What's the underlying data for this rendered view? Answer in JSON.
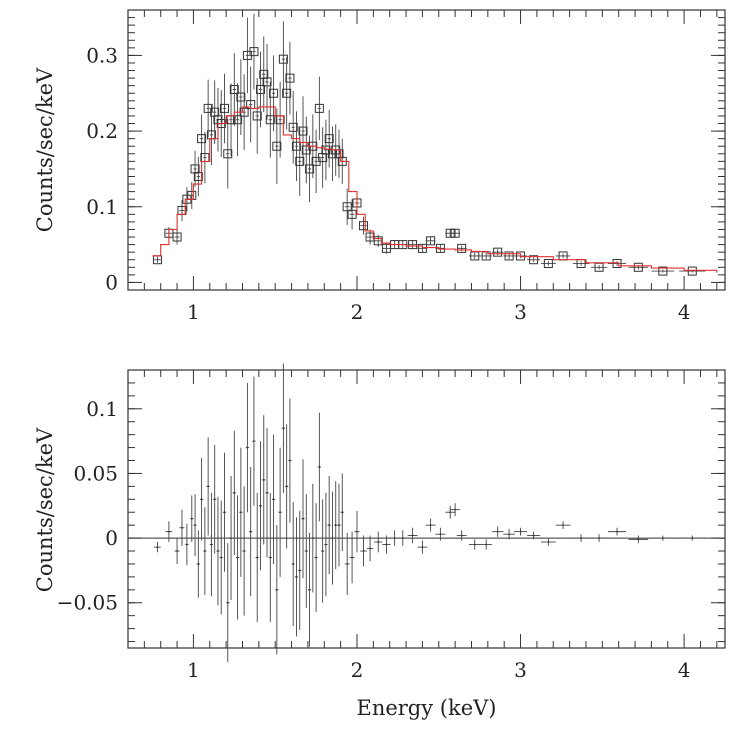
{
  "chart_data": [
    {
      "type": "scatter",
      "title": "",
      "xlabel": "",
      "ylabel": "Counts/sec/keV",
      "xlim": [
        0.6,
        4.25
      ],
      "ylim": [
        -0.01,
        0.36
      ],
      "xticks": [
        1,
        2,
        3,
        4
      ],
      "yticks": [
        0,
        0.1,
        0.2,
        0.3
      ],
      "xtick_labels": [
        "1",
        "2",
        "3",
        "4"
      ],
      "ytick_labels": [
        "0",
        "0.1",
        "0.2",
        "0.3"
      ],
      "grid": false,
      "marker": "open-square",
      "series": [
        {
          "role": "data",
          "x": [
            0.78,
            0.85,
            0.9,
            0.93,
            0.96,
            0.99,
            1.01,
            1.03,
            1.05,
            1.07,
            1.09,
            1.11,
            1.13,
            1.15,
            1.17,
            1.19,
            1.21,
            1.23,
            1.25,
            1.27,
            1.29,
            1.31,
            1.33,
            1.35,
            1.37,
            1.39,
            1.41,
            1.43,
            1.45,
            1.47,
            1.49,
            1.51,
            1.53,
            1.55,
            1.57,
            1.59,
            1.61,
            1.63,
            1.65,
            1.67,
            1.69,
            1.71,
            1.73,
            1.75,
            1.77,
            1.79,
            1.81,
            1.83,
            1.85,
            1.87,
            1.89,
            1.91,
            1.94,
            1.97,
            2.0,
            2.04,
            2.08,
            2.13,
            2.18,
            2.23,
            2.28,
            2.34,
            2.4,
            2.45,
            2.51,
            2.57,
            2.6,
            2.64,
            2.72,
            2.79,
            2.86,
            2.93,
            3.0,
            3.08,
            3.17,
            3.26,
            3.37,
            3.48,
            3.59,
            3.72,
            3.87,
            4.05
          ],
          "y": [
            0.03,
            0.065,
            0.06,
            0.095,
            0.11,
            0.115,
            0.15,
            0.14,
            0.19,
            0.165,
            0.23,
            0.195,
            0.225,
            0.215,
            0.21,
            0.23,
            0.17,
            0.215,
            0.255,
            0.215,
            0.245,
            0.225,
            0.3,
            0.235,
            0.305,
            0.22,
            0.255,
            0.275,
            0.265,
            0.215,
            0.25,
            0.18,
            0.215,
            0.295,
            0.25,
            0.27,
            0.205,
            0.18,
            0.16,
            0.2,
            0.175,
            0.15,
            0.18,
            0.16,
            0.23,
            0.165,
            0.175,
            0.19,
            0.17,
            0.175,
            0.17,
            0.16,
            0.1,
            0.09,
            0.105,
            0.075,
            0.06,
            0.055,
            0.045,
            0.05,
            0.05,
            0.05,
            0.045,
            0.055,
            0.045,
            0.065,
            0.065,
            0.045,
            0.035,
            0.035,
            0.04,
            0.035,
            0.035,
            0.03,
            0.025,
            0.035,
            0.025,
            0.02,
            0.025,
            0.02,
            0.015,
            0.015
          ],
          "yerr": [
            0.004,
            0.008,
            0.01,
            0.014,
            0.016,
            0.018,
            0.024,
            0.026,
            0.032,
            0.034,
            0.038,
            0.04,
            0.042,
            0.042,
            0.044,
            0.046,
            0.046,
            0.048,
            0.048,
            0.048,
            0.05,
            0.05,
            0.05,
            0.05,
            0.05,
            0.05,
            0.05,
            0.05,
            0.05,
            0.05,
            0.05,
            0.05,
            0.05,
            0.05,
            0.048,
            0.048,
            0.048,
            0.046,
            0.046,
            0.046,
            0.044,
            0.044,
            0.042,
            0.042,
            0.042,
            0.04,
            0.04,
            0.038,
            0.036,
            0.034,
            0.032,
            0.03,
            0.024,
            0.02,
            0.016,
            0.012,
            0.01,
            0.008,
            0.007,
            0.006,
            0.006,
            0.006,
            0.005,
            0.005,
            0.005,
            0.005,
            0.005,
            0.004,
            0.004,
            0.004,
            0.004,
            0.004,
            0.003,
            0.003,
            0.003,
            0.003,
            0.003,
            0.003,
            0.003,
            0.003,
            0.002,
            0.002
          ],
          "xerr": [
            0.02,
            0.02,
            0.015,
            0.015,
            0.01,
            0.01,
            0.01,
            0.01,
            0.01,
            0.01,
            0.01,
            0.01,
            0.01,
            0.01,
            0.01,
            0.01,
            0.01,
            0.01,
            0.01,
            0.01,
            0.01,
            0.01,
            0.01,
            0.01,
            0.01,
            0.01,
            0.01,
            0.01,
            0.01,
            0.01,
            0.01,
            0.01,
            0.01,
            0.01,
            0.01,
            0.01,
            0.01,
            0.01,
            0.01,
            0.01,
            0.01,
            0.01,
            0.01,
            0.01,
            0.01,
            0.01,
            0.01,
            0.01,
            0.01,
            0.01,
            0.01,
            0.01,
            0.015,
            0.015,
            0.015,
            0.02,
            0.02,
            0.025,
            0.025,
            0.025,
            0.025,
            0.03,
            0.03,
            0.03,
            0.03,
            0.03,
            0.03,
            0.03,
            0.035,
            0.035,
            0.035,
            0.035,
            0.04,
            0.04,
            0.045,
            0.045,
            0.05,
            0.05,
            0.055,
            0.06,
            0.07,
            0.08
          ]
        },
        {
          "role": "model",
          "color": "#e23030",
          "x": [
            0.75,
            0.8,
            0.85,
            0.9,
            0.95,
            1.0,
            1.05,
            1.1,
            1.15,
            1.2,
            1.25,
            1.3,
            1.35,
            1.4,
            1.45,
            1.5,
            1.55,
            1.6,
            1.65,
            1.7,
            1.75,
            1.8,
            1.85,
            1.9,
            1.95,
            2.0,
            2.05,
            2.1,
            2.15,
            2.2,
            2.3,
            2.4,
            2.5,
            2.6,
            2.7,
            2.8,
            3.0,
            3.2,
            3.4,
            3.6,
            3.8,
            4.0,
            4.2
          ],
          "y": [
            0.035,
            0.05,
            0.07,
            0.09,
            0.11,
            0.13,
            0.16,
            0.19,
            0.21,
            0.22,
            0.225,
            0.232,
            0.23,
            0.232,
            0.232,
            0.22,
            0.195,
            0.19,
            0.185,
            0.18,
            0.178,
            0.176,
            0.175,
            0.16,
            0.12,
            0.09,
            0.068,
            0.058,
            0.052,
            0.05,
            0.048,
            0.046,
            0.044,
            0.043,
            0.041,
            0.038,
            0.034,
            0.03,
            0.026,
            0.022,
            0.019,
            0.016,
            0.013
          ]
        }
      ]
    },
    {
      "type": "scatter",
      "title": "",
      "xlabel": "Energy (keV)",
      "ylabel": "Counts/sec/keV",
      "xlim": [
        0.6,
        4.25
      ],
      "ylim": [
        -0.085,
        0.13
      ],
      "xticks": [
        1,
        2,
        3,
        4
      ],
      "yticks": [
        -0.05,
        0,
        0.05,
        0.1
      ],
      "xtick_labels": [
        "1",
        "2",
        "3",
        "4"
      ],
      "ytick_labels": [
        "−0.05",
        "0",
        "0.05",
        "0.1"
      ],
      "grid": false,
      "zero_line": true,
      "series": [
        {
          "role": "residuals",
          "x": [
            0.78,
            0.85,
            0.9,
            0.93,
            0.96,
            0.99,
            1.01,
            1.03,
            1.05,
            1.07,
            1.09,
            1.11,
            1.13,
            1.15,
            1.17,
            1.19,
            1.21,
            1.23,
            1.25,
            1.27,
            1.29,
            1.31,
            1.33,
            1.35,
            1.37,
            1.39,
            1.41,
            1.43,
            1.45,
            1.47,
            1.49,
            1.51,
            1.53,
            1.55,
            1.57,
            1.59,
            1.61,
            1.63,
            1.65,
            1.67,
            1.69,
            1.71,
            1.73,
            1.75,
            1.77,
            1.79,
            1.81,
            1.83,
            1.85,
            1.87,
            1.89,
            1.91,
            1.94,
            1.97,
            2.0,
            2.04,
            2.08,
            2.13,
            2.18,
            2.23,
            2.28,
            2.34,
            2.4,
            2.45,
            2.51,
            2.57,
            2.6,
            2.64,
            2.72,
            2.79,
            2.86,
            2.93,
            3.0,
            3.08,
            3.17,
            3.26,
            3.37,
            3.48,
            3.59,
            3.72,
            3.87,
            4.05
          ],
          "y": [
            -0.007,
            0.005,
            -0.01,
            0.008,
            -0.005,
            0.015,
            0.01,
            -0.02,
            0.03,
            -0.01,
            0.04,
            -0.005,
            0.03,
            -0.01,
            -0.015,
            0.02,
            -0.05,
            0.0,
            0.035,
            -0.015,
            0.02,
            -0.01,
            0.07,
            0.005,
            0.075,
            -0.015,
            0.025,
            0.045,
            0.035,
            -0.015,
            0.03,
            -0.04,
            0.02,
            0.085,
            0.04,
            0.06,
            -0.02,
            -0.03,
            -0.025,
            0.015,
            -0.01,
            -0.04,
            0.0,
            -0.015,
            0.055,
            -0.01,
            -0.005,
            0.01,
            0.0,
            0.01,
            0.01,
            0.02,
            -0.02,
            -0.015,
            0.005,
            -0.01,
            -0.008,
            -0.003,
            -0.005,
            0.0,
            0.0,
            0.002,
            -0.007,
            0.01,
            0.003,
            0.02,
            0.022,
            0.002,
            -0.005,
            -0.005,
            0.005,
            0.003,
            0.005,
            0.002,
            -0.003,
            0.01,
            0.0,
            0.0,
            0.005,
            -0.001,
            0.0,
            0.0
          ],
          "yerr": [
            0.004,
            0.008,
            0.01,
            0.014,
            0.016,
            0.018,
            0.024,
            0.026,
            0.032,
            0.034,
            0.038,
            0.04,
            0.042,
            0.042,
            0.044,
            0.046,
            0.046,
            0.048,
            0.048,
            0.048,
            0.05,
            0.05,
            0.05,
            0.05,
            0.05,
            0.05,
            0.05,
            0.05,
            0.05,
            0.05,
            0.05,
            0.05,
            0.05,
            0.05,
            0.048,
            0.048,
            0.048,
            0.046,
            0.046,
            0.046,
            0.044,
            0.044,
            0.042,
            0.042,
            0.042,
            0.04,
            0.04,
            0.038,
            0.036,
            0.034,
            0.032,
            0.03,
            0.024,
            0.02,
            0.016,
            0.012,
            0.01,
            0.008,
            0.007,
            0.006,
            0.006,
            0.006,
            0.005,
            0.005,
            0.005,
            0.005,
            0.005,
            0.004,
            0.004,
            0.004,
            0.004,
            0.004,
            0.003,
            0.003,
            0.003,
            0.003,
            0.003,
            0.003,
            0.003,
            0.003,
            0.002,
            0.002
          ],
          "xerr": [
            0.02,
            0.02,
            0.015,
            0.015,
            0.01,
            0.01,
            0.01,
            0.01,
            0.01,
            0.01,
            0.01,
            0.01,
            0.01,
            0.01,
            0.01,
            0.01,
            0.01,
            0.01,
            0.01,
            0.01,
            0.01,
            0.01,
            0.01,
            0.01,
            0.01,
            0.01,
            0.01,
            0.01,
            0.01,
            0.01,
            0.01,
            0.01,
            0.01,
            0.01,
            0.01,
            0.01,
            0.01,
            0.01,
            0.01,
            0.01,
            0.01,
            0.01,
            0.01,
            0.01,
            0.01,
            0.01,
            0.01,
            0.01,
            0.01,
            0.01,
            0.01,
            0.01,
            0.015,
            0.015,
            0.015,
            0.02,
            0.02,
            0.025,
            0.025,
            0.025,
            0.025,
            0.03,
            0.03,
            0.03,
            0.03,
            0.03,
            0.03,
            0.03,
            0.035,
            0.035,
            0.035,
            0.035,
            0.04,
            0.04,
            0.045,
            0.045,
            0.05,
            0.05,
            0.055,
            0.06,
            0.07,
            0.08
          ]
        }
      ]
    }
  ]
}
